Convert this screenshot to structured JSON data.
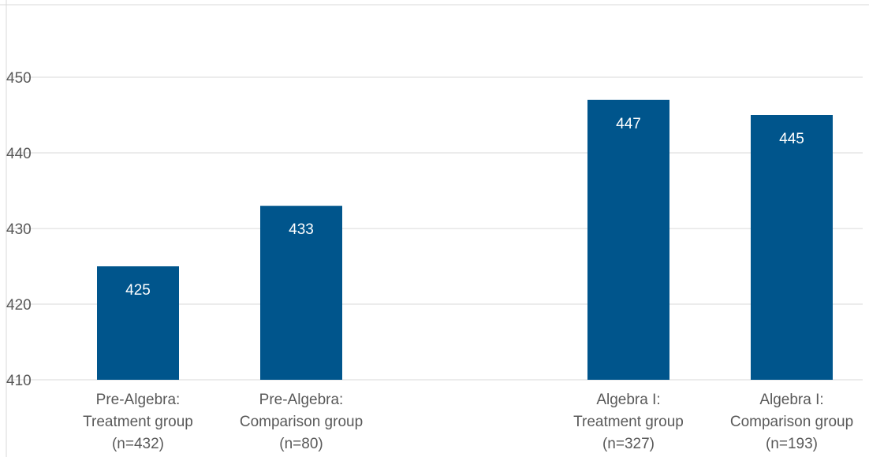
{
  "chart_data": {
    "type": "bar",
    "categories": [
      [
        "Pre-Algebra:",
        "Treatment group",
        "(n=432)"
      ],
      [
        "Pre-Algebra:",
        "Comparison group",
        "(n=80)"
      ],
      [
        "Algebra I:",
        "Treatment group",
        "(n=327)"
      ],
      [
        "Algebra I:",
        "Comparison group",
        "(n=193)"
      ]
    ],
    "values": [
      425,
      433,
      447,
      445
    ],
    "data_labels": [
      "425",
      "433",
      "447",
      "445"
    ],
    "yticks": [
      "410",
      "420",
      "430",
      "440",
      "450"
    ],
    "ylim": [
      410,
      460
    ],
    "grid": true,
    "colors": {
      "bar": "#00558C",
      "grid": "#D9D9D9",
      "text": "#595959",
      "label": "#FFFFFF"
    }
  }
}
